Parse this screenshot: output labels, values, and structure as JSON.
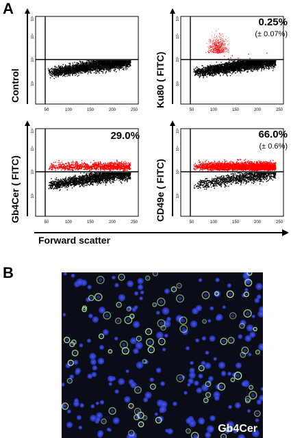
{
  "panels": {
    "a": "A",
    "b": "B"
  },
  "plots": [
    {
      "id": "control",
      "ylabel": "Control",
      "pct": "",
      "sd": "",
      "positive_fraction": 0.0,
      "positive_color": "#ff0000"
    },
    {
      "id": "ku80",
      "ylabel": "Ku80 ( FITC)",
      "pct": "0.25%",
      "sd": "(± 0.07%)",
      "positive_fraction": 0.0025,
      "positive_color": "#ff0000"
    },
    {
      "id": "gb4cer",
      "ylabel": "Gb4Cer ( FITC)",
      "pct": "29.0%",
      "sd": "",
      "positive_fraction": 0.29,
      "positive_color": "#ff0000"
    },
    {
      "id": "cd49e",
      "ylabel": "CD49e ( FITC)",
      "pct": "66.0%",
      "sd": "(± 0.6%)",
      "positive_fraction": 0.66,
      "positive_color": "#ff0000"
    }
  ],
  "axes": {
    "x_ticks": [
      "50",
      "100",
      "150",
      "200",
      "250"
    ],
    "y_ticks": [
      "10²",
      "10³",
      "10⁴",
      "10⁵"
    ],
    "x_label": "Forward scatter"
  },
  "micrograph": {
    "label": "Gb4Cer",
    "background": "#0a0d18",
    "nuclear_color": "#2a39c8",
    "stain_color": "#b8ee9a"
  }
}
